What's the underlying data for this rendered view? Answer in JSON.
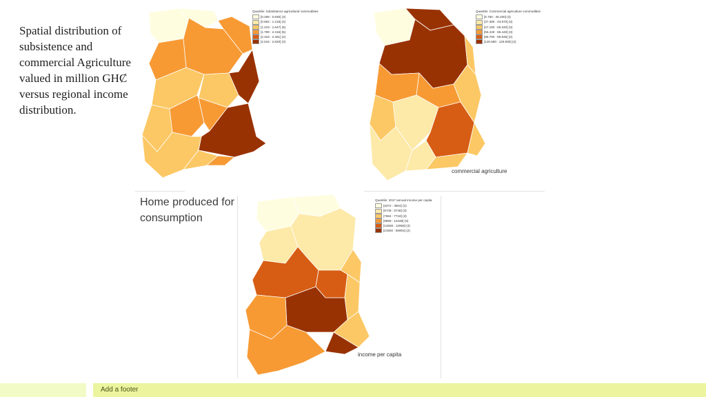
{
  "slide": {
    "title": "Spatial distribution of subsistence and commercial Agriculture valued in million GHȻ versus regional income distribution.",
    "home_caption": "Home produced for consumption",
    "commercial_caption": "commercial agriculture",
    "income_caption": "income per capita"
  },
  "maps": {
    "subsistence": {
      "legend_title": "Quantile: Subsistence agricultural commodities",
      "legend": [
        {
          "label": "[0.299 : 0.830] (3)",
          "color": "#fffde0"
        },
        {
          "label": "[0.862 : 1.218] (4)",
          "color": "#fde9a8"
        },
        {
          "label": "[1.219 : 1.647] (5)",
          "color": "#fcc865"
        },
        {
          "label": "[1.799 : 2.316] (5)",
          "color": "#f79a34"
        },
        {
          "label": "[2.316 : 2.461] (4)",
          "color": "#d75d14"
        },
        {
          "label": "[2.515 : 2.820] (3)",
          "color": "#993203"
        }
      ]
    },
    "commercial": {
      "legend_title": "Quantile: Commercial agriculture commodities",
      "legend": [
        {
          "label": "[6.750 : 26.330] (3)",
          "color": "#fffde0"
        },
        {
          "label": "[37.380 : 43.970] (3)",
          "color": "#fde9a8"
        },
        {
          "label": "[47.150 : 65.340] (3)",
          "color": "#fcc865"
        },
        {
          "label": "[65.440 : 65.440] (3)",
          "color": "#f79a34"
        },
        {
          "label": "[96.750 : 96.830] (2)",
          "color": "#d75d14"
        },
        {
          "label": "[125.580 : 125.580] (3)",
          "color": "#993203"
        }
      ]
    },
    "income": {
      "legend_title": "Quantile: 2017 annual income per capita",
      "legend": [
        {
          "label": "[3372 : 3604] (2)",
          "color": "#fffde0"
        },
        {
          "label": "[5748 : 5748] (3)",
          "color": "#fde9a8"
        },
        {
          "label": "[7584 : 7718] (3)",
          "color": "#fcc865"
        },
        {
          "label": "[9858 : 12188] (3)",
          "color": "#f79a34"
        },
        {
          "label": "[12658 : 12658] (3)",
          "color": "#d75d14"
        },
        {
          "label": "[21592 : 56904] (2)",
          "color": "#993203"
        }
      ]
    }
  },
  "footer": {
    "text": "Add a footer"
  }
}
